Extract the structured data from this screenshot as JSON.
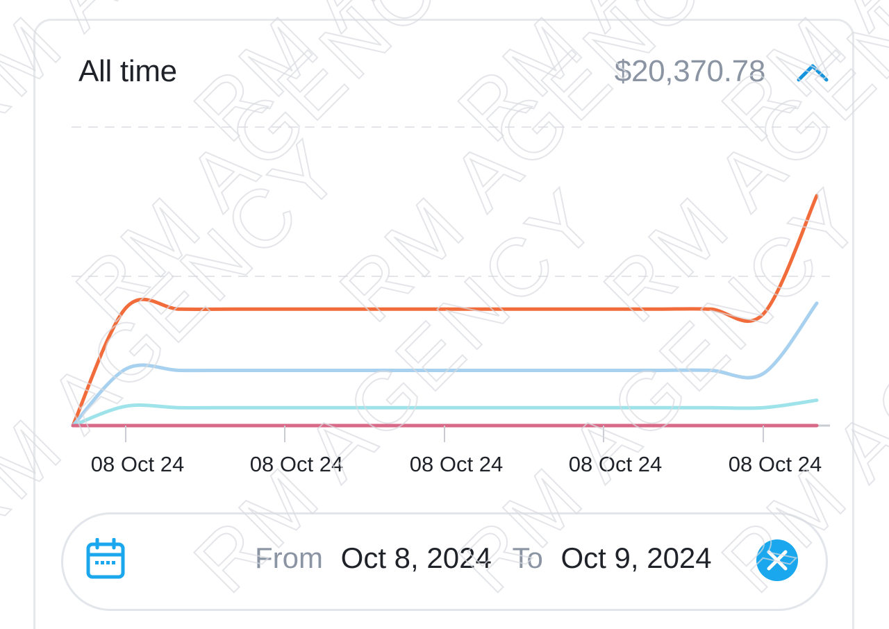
{
  "summary": {
    "title": "All time",
    "total": "$20,370.78",
    "collapse_icon": "chevron-up-icon",
    "accent_color": "#1593dd"
  },
  "chart_data": {
    "type": "line",
    "x_tick_labels": [
      "08 Oct 24",
      "08 Oct 24",
      "08 Oct 24",
      "08 Oct 24",
      "08 Oct 24"
    ],
    "grid": "horizontal dashed",
    "legend": "none",
    "series": [
      {
        "color": "#f26b3a",
        "values": [
          0,
          0.79,
          0.78,
          0.78,
          0.78,
          0.78,
          0.78,
          0.78,
          0.78,
          0.78,
          0.78,
          0.78,
          0.78,
          0.75,
          1.54
        ]
      },
      {
        "color": "#a8d1ef",
        "values": [
          0,
          0.38,
          0.37,
          0.37,
          0.37,
          0.37,
          0.37,
          0.37,
          0.37,
          0.37,
          0.37,
          0.37,
          0.37,
          0.35,
          0.82
        ]
      },
      {
        "color": "#9ee3ea",
        "values": [
          0,
          0.13,
          0.12,
          0.12,
          0.12,
          0.12,
          0.12,
          0.12,
          0.12,
          0.12,
          0.12,
          0.12,
          0.12,
          0.12,
          0.17
        ]
      },
      {
        "color": "#d86a88",
        "values": [
          0,
          0,
          0,
          0,
          0,
          0,
          0,
          0,
          0,
          0,
          0,
          0,
          0,
          0,
          0
        ]
      }
    ],
    "ylim": [
      0,
      2
    ]
  },
  "date_range": {
    "from_label": "From",
    "from_value": "Oct 8, 2024",
    "to_label": "To",
    "to_value": "Oct 9, 2024",
    "calendar_icon": "calendar-icon",
    "clear_icon": "close-icon",
    "icon_color": "#1aa7ee"
  },
  "watermark": {
    "text_1": "RM AGENCY"
  }
}
